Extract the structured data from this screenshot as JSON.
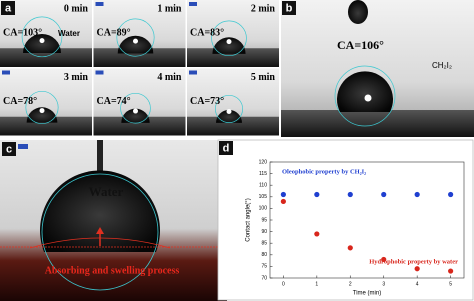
{
  "panel_a": {
    "label": "a",
    "liquid": "Water",
    "frames": [
      {
        "time": "0 min",
        "ca": "CA=103°"
      },
      {
        "time": "1 min",
        "ca": "CA=89°"
      },
      {
        "time": "2 min",
        "ca": "CA=83°"
      },
      {
        "time": "3 min",
        "ca": "CA=78°"
      },
      {
        "time": "4 min",
        "ca": "CA=74°"
      },
      {
        "time": "5 min",
        "ca": "CA=73°"
      }
    ]
  },
  "panel_b": {
    "label": "b",
    "ca": "CA=106°",
    "liquid": "CH₂I₂"
  },
  "panel_c": {
    "label": "c",
    "liquid": "Water",
    "caption": "Absorbing and swelling process"
  },
  "chart_data": {
    "type": "scatter",
    "panel_label": "d",
    "xlabel": "Time (min)",
    "ylabel": "Contact angle(°)",
    "x": [
      0,
      1,
      2,
      3,
      4,
      5
    ],
    "series": [
      {
        "name": "Oleophobic property by CH₂I₂",
        "color": "#1f3fd0",
        "values": [
          106,
          106,
          106,
          106,
          106,
          106
        ]
      },
      {
        "name": "Hydrophobic property by water",
        "color": "#d8261c",
        "values": [
          103,
          89,
          83,
          78,
          74,
          73
        ]
      }
    ],
    "xlim": [
      -0.4,
      5.4
    ],
    "xticks": [
      0,
      1,
      2,
      3,
      4,
      5
    ],
    "ylim": [
      70,
      120
    ],
    "yticks": [
      70,
      75,
      80,
      85,
      90,
      95,
      100,
      105,
      110,
      115,
      120
    ]
  }
}
